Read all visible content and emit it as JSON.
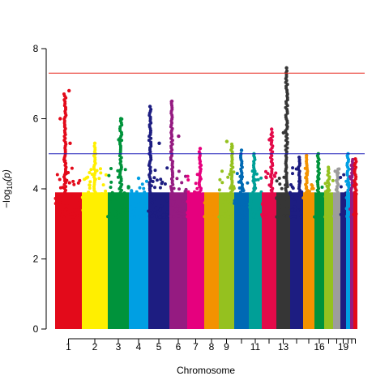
{
  "chart_data": {
    "type": "scatter",
    "xlabel": "Chromosome",
    "ylabel": "−log10(p)",
    "ylabel_parts": {
      "prefix": "−log",
      "sub": "10",
      "suffix": "(p)"
    },
    "ylim": [
      0,
      8
    ],
    "y_ticks": [
      "0",
      "2",
      "4",
      "6",
      "8"
    ],
    "x_tick_labels": [
      "1",
      "2",
      "3",
      "4",
      "5",
      "6",
      "7",
      "8",
      "9",
      "11",
      "13",
      "16",
      "19"
    ],
    "thresholds": [
      {
        "value": 7.3,
        "color": "#e8281f"
      },
      {
        "value": 5.0,
        "color": "#1a1ab8"
      }
    ],
    "chromosomes": [
      {
        "chr": 1,
        "color": "#e30a1a",
        "max": 6.8,
        "peak_at": 0.37,
        "outliers": [
          4.8,
          6.8,
          6.0,
          5.3
        ]
      },
      {
        "chr": 2,
        "color": "#ffef00",
        "max": 5.3,
        "peak_at": 0.5,
        "outliers": [
          5.3,
          5.0
        ]
      },
      {
        "chr": 3,
        "color": "#00933b",
        "max": 6.05,
        "peak_at": 0.62,
        "outliers": [
          6.0,
          5.4
        ]
      },
      {
        "chr": 4,
        "color": "#009fe3",
        "max": 4.3,
        "peak_at": 0.5,
        "outliers": [
          4.3
        ]
      },
      {
        "chr": 5,
        "color": "#1d1d81",
        "max": 6.35,
        "peak_at": 0.08,
        "outliers": [
          6.35,
          5.3
        ]
      },
      {
        "chr": 6,
        "color": "#951b81",
        "max": 6.55,
        "peak_at": 0.14,
        "outliers": [
          6.5,
          5.5
        ]
      },
      {
        "chr": 7,
        "color": "#e6007e",
        "max": 5.15,
        "peak_at": 0.76,
        "outliers": [
          5.15
        ]
      },
      {
        "chr": 8,
        "color": "#f39200",
        "max": 3.9,
        "peak_at": 0.5,
        "outliers": []
      },
      {
        "chr": 9,
        "color": "#95c11f",
        "max": 5.35,
        "peak_at": 0.85,
        "outliers": [
          5.2,
          5.35
        ]
      },
      {
        "chr": 10,
        "color": "#0069b4",
        "max": 5.1,
        "peak_at": 0.5,
        "outliers": [
          5.1
        ]
      },
      {
        "chr": 11,
        "color": "#009f97",
        "max": 5.0,
        "peak_at": 0.4,
        "outliers": [
          5.0
        ]
      },
      {
        "chr": 12,
        "color": "#e30a49",
        "max": 5.7,
        "peak_at": 0.68,
        "outliers": [
          5.7,
          5.4
        ]
      },
      {
        "chr": 13,
        "color": "#363636",
        "max": 7.45,
        "peak_at": 0.74,
        "outliers": [
          7.45,
          5.6
        ]
      },
      {
        "chr": 14,
        "color": "#1d1d81",
        "max": 4.9,
        "peak_at": 0.7,
        "outliers": [
          4.9
        ]
      },
      {
        "chr": 15,
        "color": "#f39200",
        "max": 4.95,
        "peak_at": 0.3,
        "outliers": [
          4.95
        ]
      },
      {
        "chr": 16,
        "color": "#00933b",
        "max": 5.0,
        "peak_at": 0.4,
        "outliers": [
          5.0
        ]
      },
      {
        "chr": 17,
        "color": "#95c11f",
        "max": 4.7,
        "peak_at": 0.5,
        "outliers": []
      },
      {
        "chr": 18,
        "color": "#9d9d9c",
        "max": 4.65,
        "peak_at": 0.6,
        "outliers": []
      },
      {
        "chr": 19,
        "color": "#1d1d81",
        "max": 4.5,
        "peak_at": 0.5,
        "outliers": []
      },
      {
        "chr": 20,
        "color": "#009fe3",
        "max": 5.0,
        "peak_at": 0.5,
        "outliers": [
          5.0
        ]
      },
      {
        "chr": 21,
        "color": "#951b81",
        "max": 4.9,
        "peak_at": 0.5,
        "outliers": []
      },
      {
        "chr": 22,
        "color": "#e30a1a",
        "max": 4.85,
        "peak_at": 0.5,
        "outliers": [
          4.85
        ]
      }
    ],
    "grid": false,
    "legend": "none"
  }
}
